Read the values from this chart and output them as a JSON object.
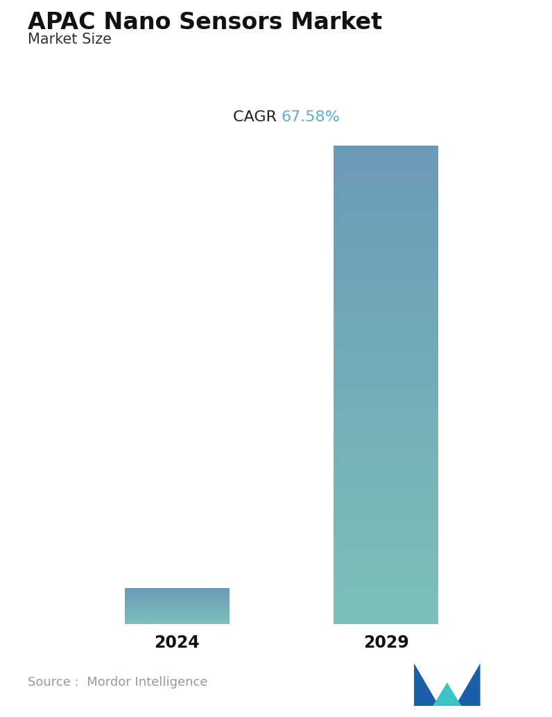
{
  "title": "APAC Nano Sensors Market",
  "subtitle": "Market Size",
  "cagr_label": "CAGR ",
  "cagr_value": "67.58%",
  "cagr_color": "#5bafd6",
  "categories": [
    "2024",
    "2029"
  ],
  "values": [
    1,
    13.5
  ],
  "bar_color_top": "#6b9ab8",
  "bar_color_bottom": "#7dc0b8",
  "background_color": "#ffffff",
  "source_text": "Source :  Mordor Intelligence",
  "source_color": "#999999",
  "title_fontsize": 24,
  "subtitle_fontsize": 15,
  "cagr_fontsize": 16,
  "tick_fontsize": 17,
  "source_fontsize": 13
}
